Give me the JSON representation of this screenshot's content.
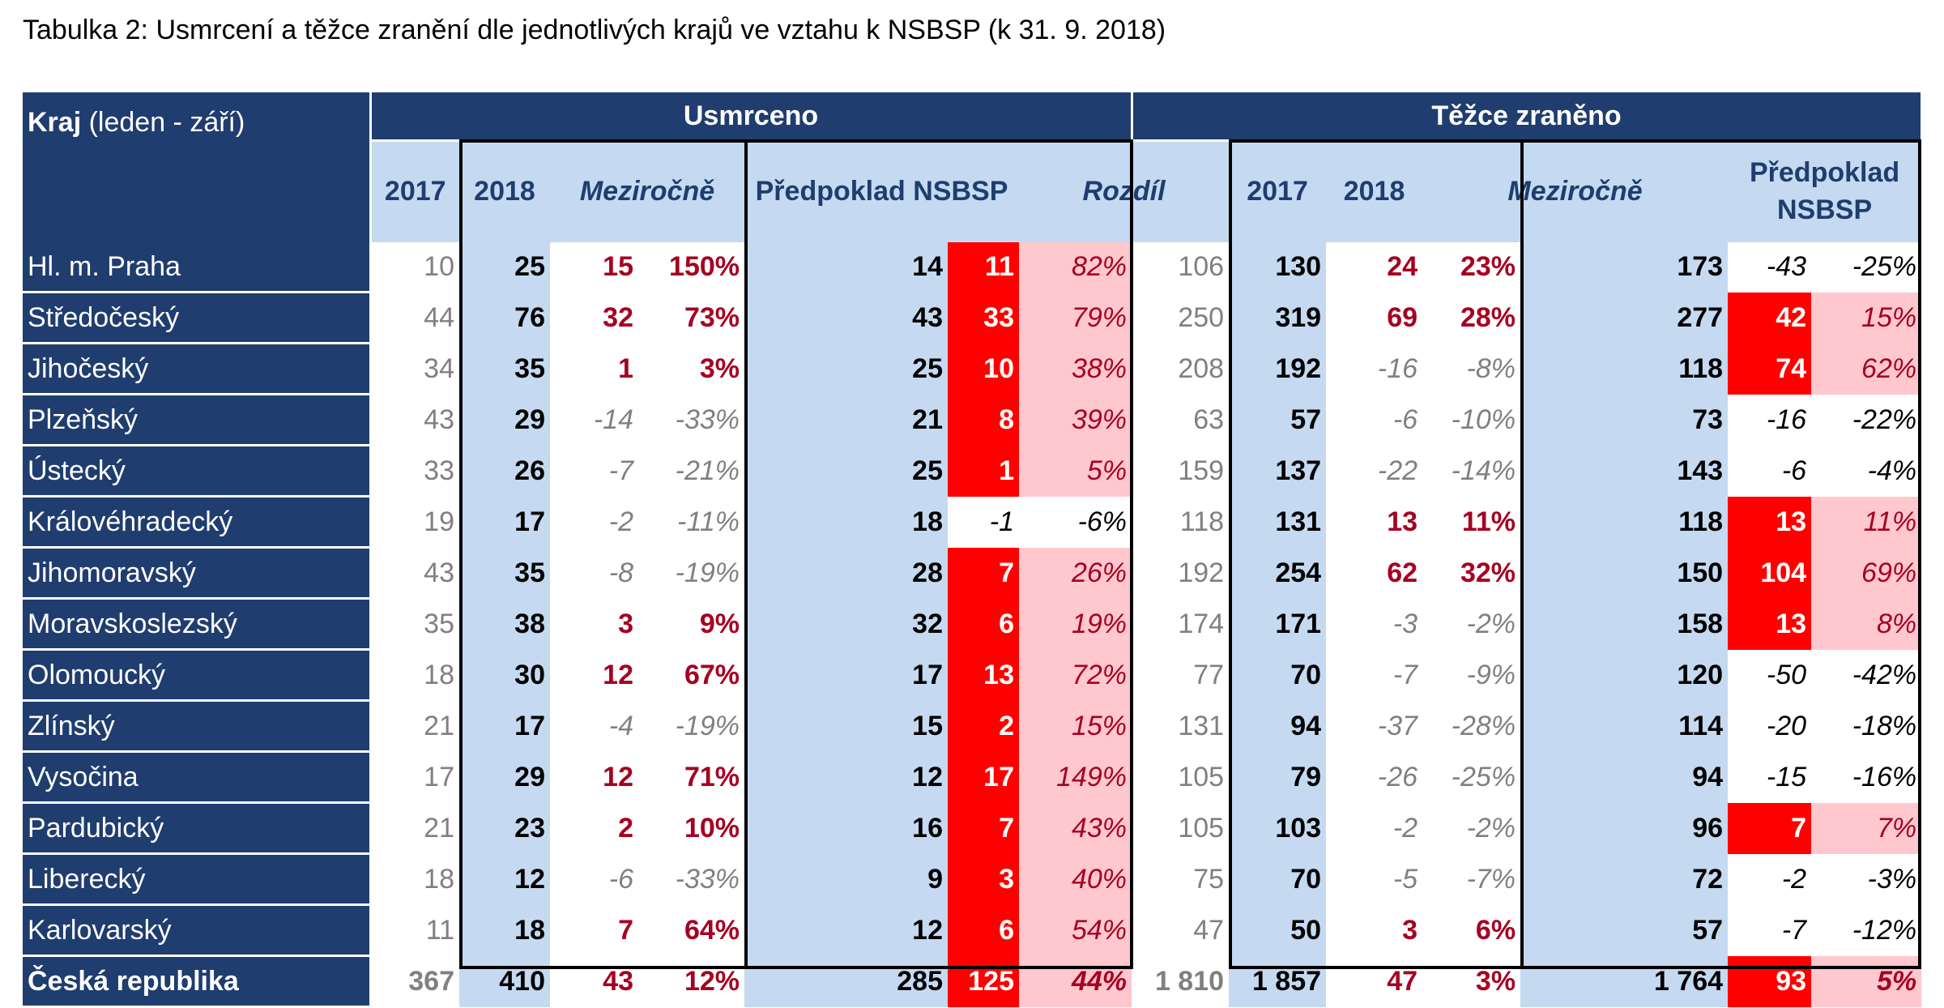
{
  "title": "Tabulka 2: Usmrcení a těžce zranění dle jednotlivých krajů ve vztahu k NSBSP (k 31. 9. 2018)",
  "header": {
    "kraj": "Kraj",
    "kraj_note": "(leden - září)",
    "groups": [
      "Usmrceno",
      "Těžce zraněno"
    ],
    "columns": [
      "2017",
      "2018",
      "Meziročně",
      "Předpoklad NSBSP",
      "Rozdíl"
    ]
  },
  "table": {
    "rows": [
      [
        "Hl. m. Praha",
        "10",
        "25",
        "15",
        "150%",
        "14",
        "11",
        "82%",
        "106",
        "130",
        "24",
        "23%",
        "173",
        "-43",
        "-25%"
      ],
      [
        "Středočeský",
        "44",
        "76",
        "32",
        "73%",
        "43",
        "33",
        "79%",
        "250",
        "319",
        "69",
        "28%",
        "277",
        "42",
        "15%"
      ],
      [
        "Jihočeský",
        "34",
        "35",
        "1",
        "3%",
        "25",
        "10",
        "38%",
        "208",
        "192",
        "-16",
        "-8%",
        "118",
        "74",
        "62%"
      ],
      [
        "Plzeňský",
        "43",
        "29",
        "-14",
        "-33%",
        "21",
        "8",
        "39%",
        "63",
        "57",
        "-6",
        "-10%",
        "73",
        "-16",
        "-22%"
      ],
      [
        "Ústecký",
        "33",
        "26",
        "-7",
        "-21%",
        "25",
        "1",
        "5%",
        "159",
        "137",
        "-22",
        "-14%",
        "143",
        "-6",
        "-4%"
      ],
      [
        "Královéhradecký",
        "19",
        "17",
        "-2",
        "-11%",
        "18",
        "-1",
        "-6%",
        "118",
        "131",
        "13",
        "11%",
        "118",
        "13",
        "11%"
      ],
      [
        "Jihomoravský",
        "43",
        "35",
        "-8",
        "-19%",
        "28",
        "7",
        "26%",
        "192",
        "254",
        "62",
        "32%",
        "150",
        "104",
        "69%"
      ],
      [
        "Moravskoslezský",
        "35",
        "38",
        "3",
        "9%",
        "32",
        "6",
        "19%",
        "174",
        "171",
        "-3",
        "-2%",
        "158",
        "13",
        "8%"
      ],
      [
        "Olomoucký",
        "18",
        "30",
        "12",
        "67%",
        "17",
        "13",
        "72%",
        "77",
        "70",
        "-7",
        "-9%",
        "120",
        "-50",
        "-42%"
      ],
      [
        "Zlínský",
        "21",
        "17",
        "-4",
        "-19%",
        "15",
        "2",
        "15%",
        "131",
        "94",
        "-37",
        "-28%",
        "114",
        "-20",
        "-18%"
      ],
      [
        "Vysočina",
        "17",
        "29",
        "12",
        "71%",
        "12",
        "17",
        "149%",
        "105",
        "79",
        "-26",
        "-25%",
        "94",
        "-15",
        "-16%"
      ],
      [
        "Pardubický",
        "21",
        "23",
        "2",
        "10%",
        "16",
        "7",
        "43%",
        "105",
        "103",
        "-2",
        "-2%",
        "96",
        "7",
        "7%"
      ],
      [
        "Liberecký",
        "18",
        "12",
        "-6",
        "-33%",
        "9",
        "3",
        "40%",
        "75",
        "70",
        "-5",
        "-7%",
        "72",
        "-2",
        "-3%"
      ],
      [
        "Karlovarský",
        "11",
        "18",
        "7",
        "64%",
        "12",
        "6",
        "54%",
        "47",
        "50",
        "3",
        "6%",
        "57",
        "-7",
        "-12%"
      ],
      [
        "Česká republika",
        "367",
        "410",
        "43",
        "12%",
        "285",
        "125",
        "44%",
        "1 810",
        "1 857",
        "47",
        "3%",
        "1 764",
        "93",
        "5%"
      ]
    ]
  }
}
